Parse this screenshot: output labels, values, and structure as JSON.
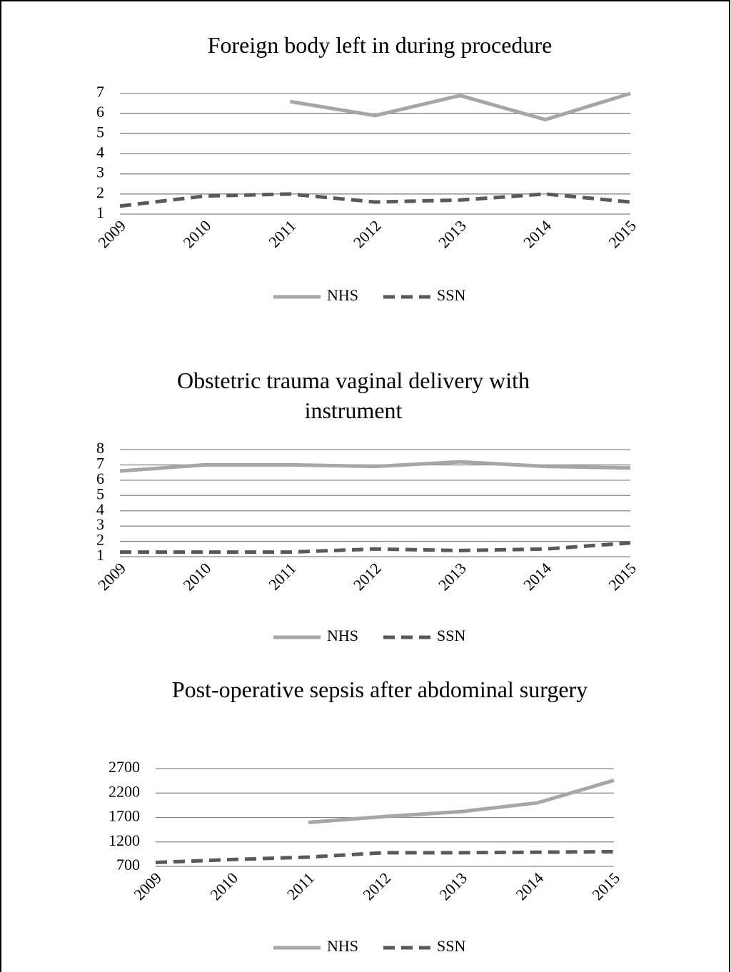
{
  "chart_data": [
    {
      "type": "line",
      "title": "Foreign body left in during procedure",
      "categories": [
        "2009",
        "2010",
        "2011",
        "2012",
        "2013",
        "2014",
        "2015"
      ],
      "series": [
        {
          "name": "NHS",
          "color": "#a6a6a6",
          "values": [
            null,
            null,
            6.6,
            5.9,
            6.9,
            5.7,
            7.0
          ]
        },
        {
          "name": "SSN",
          "color": "#595959",
          "dashed": true,
          "values": [
            1.4,
            1.9,
            2.0,
            1.6,
            1.7,
            2.0,
            1.6
          ]
        }
      ],
      "ylim": [
        1,
        7
      ],
      "yticks": [
        1,
        2,
        3,
        4,
        5,
        6,
        7
      ],
      "grid": true,
      "legend": "bottom"
    },
    {
      "type": "line",
      "title": "Obstetric trauma vaginal delivery with instrument",
      "categories": [
        "2009",
        "2010",
        "2011",
        "2012",
        "2013",
        "2014",
        "2015"
      ],
      "series": [
        {
          "name": "NHS",
          "color": "#a6a6a6",
          "values": [
            6.6,
            7.0,
            7.0,
            6.9,
            7.2,
            6.9,
            6.8
          ]
        },
        {
          "name": "SSN",
          "color": "#595959",
          "dashed": true,
          "values": [
            1.3,
            1.3,
            1.3,
            1.5,
            1.4,
            1.5,
            1.9
          ]
        }
      ],
      "ylim": [
        1,
        8
      ],
      "yticks": [
        1,
        2,
        3,
        4,
        5,
        6,
        7,
        8
      ],
      "grid": true,
      "legend": "bottom"
    },
    {
      "type": "line",
      "title": "Post-operative sepsis after abdominal surgery",
      "categories": [
        "2009",
        "2010",
        "2011",
        "2012",
        "2013",
        "2014",
        "2015"
      ],
      "series": [
        {
          "name": "NHS",
          "color": "#a6a6a6",
          "values": [
            null,
            null,
            1600,
            1720,
            1820,
            2000,
            2460
          ]
        },
        {
          "name": "SSN",
          "color": "#595959",
          "dashed": true,
          "values": [
            780,
            840,
            890,
            980,
            980,
            990,
            1000
          ]
        }
      ],
      "ylim": [
        700,
        2700
      ],
      "yticks": [
        700,
        1200,
        1700,
        2200,
        2700
      ],
      "grid": true,
      "legend": "bottom"
    }
  ]
}
